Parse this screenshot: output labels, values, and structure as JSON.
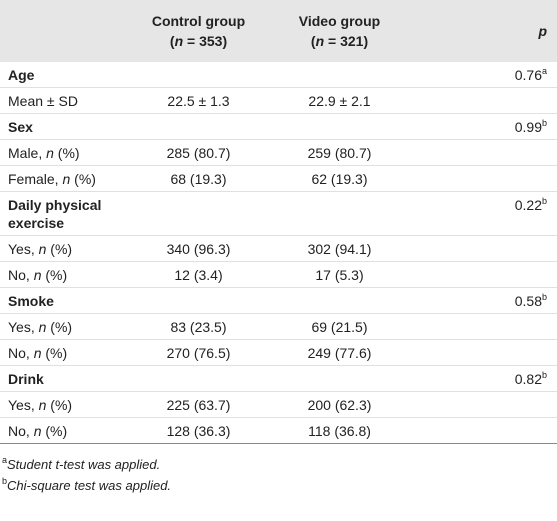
{
  "table": {
    "header": {
      "cells": [
        [],
        [
          [
            "Control group"
          ],
          [
            "(",
            {
              "i": "n"
            },
            " = 353)"
          ]
        ],
        [
          [
            "Video group"
          ],
          [
            "(",
            {
              "i": "n"
            },
            " = 321)"
          ]
        ],
        [
          [
            {
              "i": "p"
            }
          ]
        ]
      ]
    },
    "rows": [
      {
        "section": true,
        "cells": [
          [
            "Age"
          ],
          [],
          [],
          [
            "0.76",
            {
              "sup": "a"
            }
          ]
        ]
      },
      {
        "section": false,
        "cells": [
          [
            "Mean ± SD"
          ],
          [
            "22.5 ± 1.3"
          ],
          [
            "22.9 ± 2.1"
          ],
          []
        ]
      },
      {
        "section": true,
        "cells": [
          [
            "Sex"
          ],
          [],
          [],
          [
            "0.99",
            {
              "sup": "b"
            }
          ]
        ]
      },
      {
        "section": false,
        "cells": [
          [
            "Male, ",
            {
              "i": "n"
            },
            " (%)"
          ],
          [
            "285 (80.7)"
          ],
          [
            "259 (80.7)"
          ],
          []
        ]
      },
      {
        "section": false,
        "cells": [
          [
            "Female, ",
            {
              "i": "n"
            },
            " (%)"
          ],
          [
            "68 (19.3)"
          ],
          [
            "62 (19.3)"
          ],
          []
        ]
      },
      {
        "section": true,
        "cells": [
          [
            "Daily physical exercise"
          ],
          [],
          [],
          [
            "0.22",
            {
              "sup": "b"
            }
          ]
        ]
      },
      {
        "section": false,
        "cells": [
          [
            "Yes, ",
            {
              "i": "n"
            },
            " (%)"
          ],
          [
            "340 (96.3)"
          ],
          [
            "302 (94.1)"
          ],
          []
        ]
      },
      {
        "section": false,
        "cells": [
          [
            "No, ",
            {
              "i": "n"
            },
            " (%)"
          ],
          [
            "12 (3.4)"
          ],
          [
            "17 (5.3)"
          ],
          []
        ]
      },
      {
        "section": true,
        "cells": [
          [
            "Smoke"
          ],
          [],
          [],
          [
            "0.58",
            {
              "sup": "b"
            }
          ]
        ]
      },
      {
        "section": false,
        "cells": [
          [
            "Yes, ",
            {
              "i": "n"
            },
            " (%)"
          ],
          [
            "83 (23.5)"
          ],
          [
            "69 (21.5)"
          ],
          []
        ]
      },
      {
        "section": false,
        "cells": [
          [
            "No, ",
            {
              "i": "n"
            },
            " (%)"
          ],
          [
            "270 (76.5)"
          ],
          [
            "249 (77.6)"
          ],
          []
        ]
      },
      {
        "section": true,
        "cells": [
          [
            "Drink"
          ],
          [],
          [],
          [
            "0.82",
            {
              "sup": "b"
            }
          ]
        ]
      },
      {
        "section": false,
        "cells": [
          [
            "Yes, ",
            {
              "i": "n"
            },
            " (%)"
          ],
          [
            "225 (63.7)"
          ],
          [
            "200 (62.3)"
          ],
          []
        ]
      },
      {
        "section": false,
        "cells": [
          [
            "No, ",
            {
              "i": "n"
            },
            " (%)"
          ],
          [
            "128 (36.3)"
          ],
          [
            "118 (36.8)"
          ],
          []
        ]
      }
    ],
    "footnotes": [
      [
        {
          "sup": "a"
        },
        {
          "i": "Student t-test was applied."
        }
      ],
      [
        {
          "sup": "b"
        },
        {
          "i": "Chi-square test was applied."
        }
      ]
    ]
  }
}
